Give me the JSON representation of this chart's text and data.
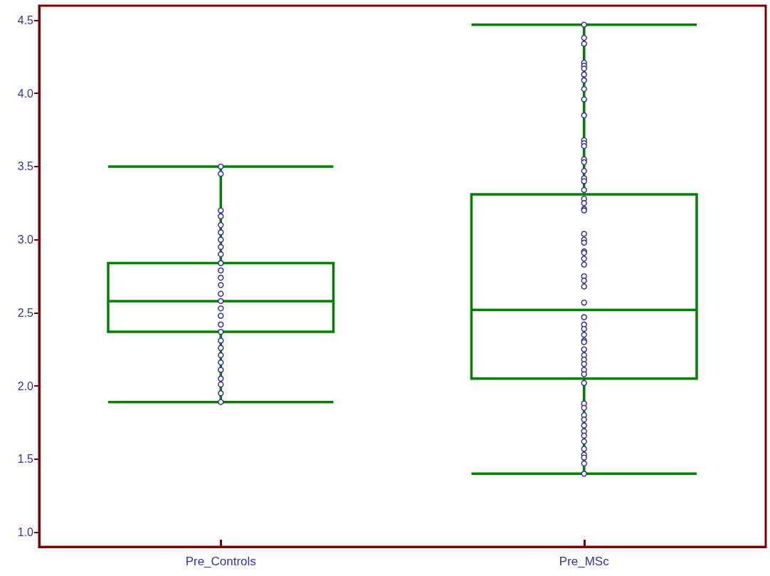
{
  "chart_data": {
    "type": "box",
    "categories": [
      "Pre_Controls",
      "Pre_MSc"
    ],
    "color": "#008000",
    "boxes": [
      {
        "low": 1.89,
        "q1": 2.37,
        "median": 2.58,
        "q3": 2.84,
        "high": 3.5
      },
      {
        "low": 1.4,
        "q1": 2.05,
        "median": 2.52,
        "q3": 3.31,
        "high": 4.47
      }
    ],
    "series": [
      {
        "type": "scatter",
        "color": "#333399",
        "marker": "circle",
        "x": [
          "Pre_Controls",
          "Pre_Controls",
          "Pre_Controls",
          "Pre_Controls",
          "Pre_Controls",
          "Pre_Controls",
          "Pre_Controls",
          "Pre_Controls",
          "Pre_Controls",
          "Pre_Controls",
          "Pre_Controls",
          "Pre_Controls",
          "Pre_Controls",
          "Pre_Controls",
          "Pre_Controls",
          "Pre_Controls",
          "Pre_Controls",
          "Pre_Controls",
          "Pre_Controls",
          "Pre_Controls",
          "Pre_Controls",
          "Pre_Controls",
          "Pre_Controls",
          "Pre_Controls",
          "Pre_Controls",
          "Pre_Controls",
          "Pre_Controls",
          "Pre_Controls"
        ],
        "values": [
          3.5,
          3.45,
          3.2,
          3.16,
          3.1,
          3.05,
          3.0,
          2.95,
          2.9,
          2.84,
          2.79,
          2.74,
          2.69,
          2.63,
          2.58,
          2.53,
          2.48,
          2.42,
          2.37,
          2.31,
          2.26,
          2.21,
          2.16,
          2.11,
          2.05,
          2.01,
          1.95,
          1.89
        ]
      },
      {
        "type": "scatter",
        "color": "#333399",
        "marker": "circle",
        "x": [
          "Pre_MSc",
          "Pre_MSc",
          "Pre_MSc",
          "Pre_MSc",
          "Pre_MSc",
          "Pre_MSc",
          "Pre_MSc",
          "Pre_MSc",
          "Pre_MSc",
          "Pre_MSc",
          "Pre_MSc",
          "Pre_MSc",
          "Pre_MSc",
          "Pre_MSc",
          "Pre_MSc",
          "Pre_MSc",
          "Pre_MSc",
          "Pre_MSc",
          "Pre_MSc",
          "Pre_MSc",
          "Pre_MSc",
          "Pre_MSc",
          "Pre_MSc",
          "Pre_MSc",
          "Pre_MSc",
          "Pre_MSc",
          "Pre_MSc",
          "Pre_MSc",
          "Pre_MSc",
          "Pre_MSc",
          "Pre_MSc",
          "Pre_MSc",
          "Pre_MSc",
          "Pre_MSc",
          "Pre_MSc",
          "Pre_MSc",
          "Pre_MSc",
          "Pre_MSc",
          "Pre_MSc",
          "Pre_MSc",
          "Pre_MSc",
          "Pre_MSc",
          "Pre_MSc",
          "Pre_MSc",
          "Pre_MSc",
          "Pre_MSc",
          "Pre_MSc",
          "Pre_MSc",
          "Pre_MSc",
          "Pre_MSc",
          "Pre_MSc",
          "Pre_MSc",
          "Pre_MSc",
          "Pre_MSc",
          "Pre_MSc",
          "Pre_MSc",
          "Pre_MSc",
          "Pre_MSc",
          "Pre_MSc",
          "Pre_MSc",
          "Pre_MSc"
        ],
        "values": [
          4.47,
          4.38,
          4.34,
          4.21,
          4.19,
          4.17,
          4.13,
          4.09,
          4.03,
          3.96,
          3.85,
          3.68,
          3.66,
          3.64,
          3.55,
          3.53,
          3.47,
          3.42,
          3.4,
          3.34,
          3.28,
          3.25,
          3.21,
          3.2,
          3.04,
          3.0,
          2.98,
          2.92,
          2.91,
          2.87,
          2.83,
          2.75,
          2.72,
          2.68,
          2.57,
          2.47,
          2.42,
          2.39,
          2.35,
          2.31,
          2.3,
          2.25,
          2.21,
          2.18,
          2.15,
          2.11,
          2.08,
          2.02,
          1.88,
          1.85,
          1.8,
          1.77,
          1.73,
          1.69,
          1.66,
          1.62,
          1.57,
          1.53,
          1.51,
          1.47,
          1.4
        ]
      }
    ],
    "ylim": [
      0.9,
      4.6
    ],
    "yticks": [
      {
        "value": 1,
        "label": "1.0"
      },
      1.5,
      {
        "value": 2,
        "label": "2.0"
      },
      2.5,
      {
        "value": 3,
        "label": "3.0"
      },
      3.5,
      {
        "value": 4,
        "label": "4.0"
      },
      4.5
    ]
  }
}
